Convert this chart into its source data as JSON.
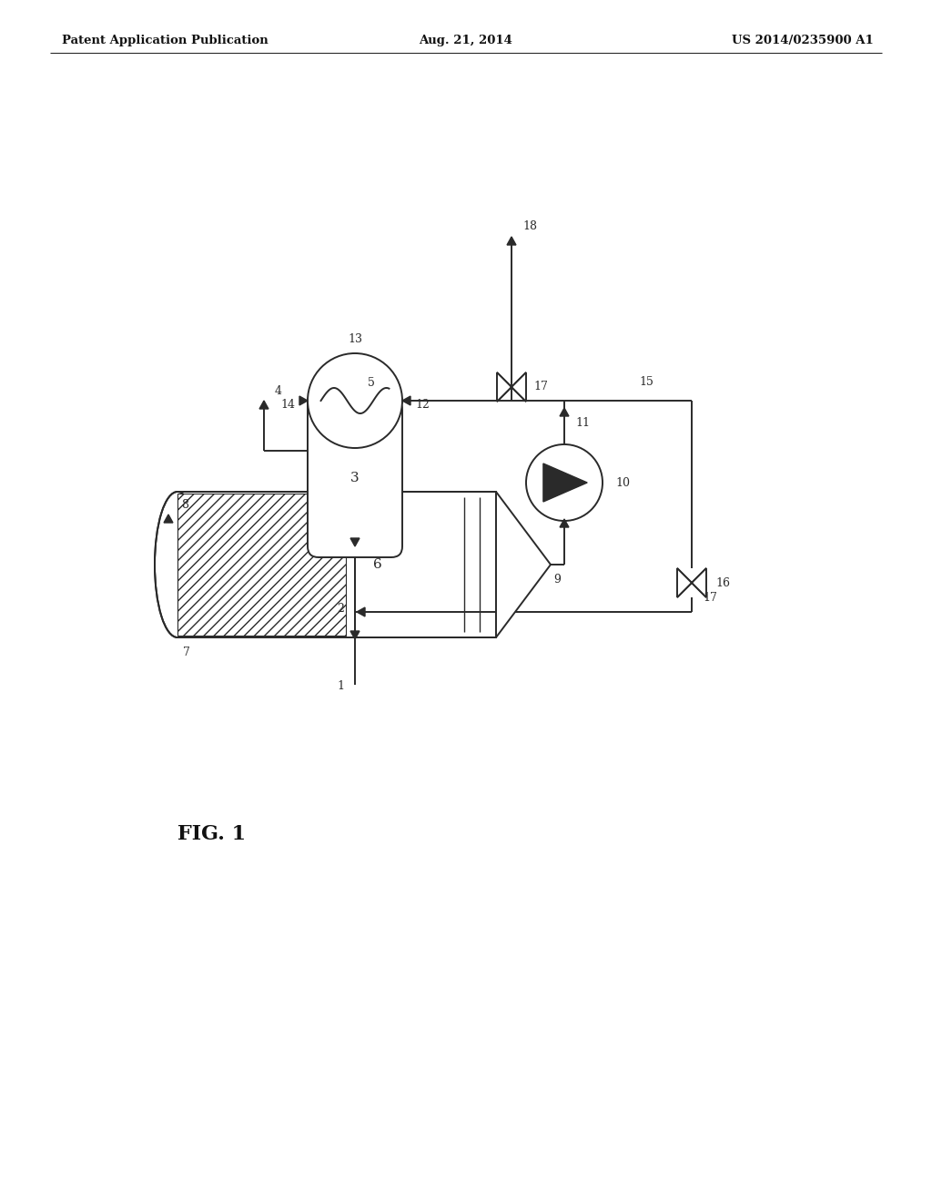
{
  "background_color": "#ffffff",
  "header_left": "Patent Application Publication",
  "header_center": "Aug. 21, 2014",
  "header_right": "US 2014/0235900 A1",
  "figure_label": "FIG. 1",
  "line_color": "#2a2a2a",
  "line_width": 1.4
}
